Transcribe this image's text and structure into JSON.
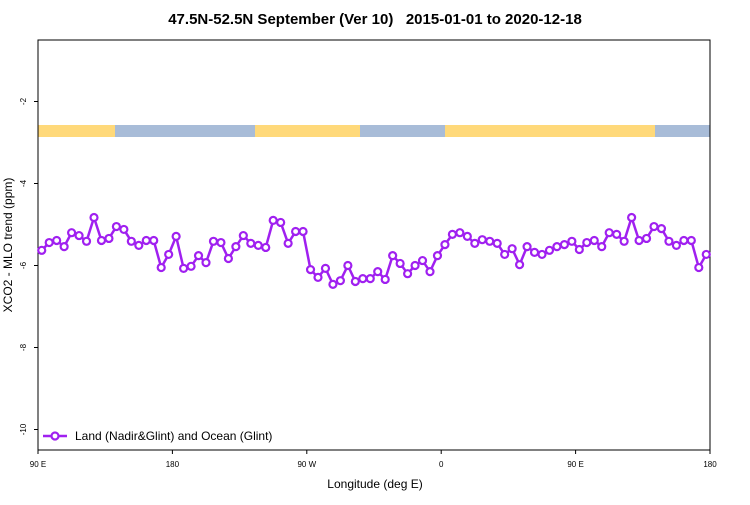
{
  "chart_data": {
    "type": "line",
    "title": "47.5N-52.5N September (Ver 10)   2015-01-01 to 2020-12-18",
    "x_label": "Longitude (deg E)",
    "y_label": "XCO2 - MLO trend (ppm)",
    "xlim": [
      90,
      540
    ],
    "ylim": [
      -10.5,
      -0.5
    ],
    "xticks": [
      {
        "value": 90,
        "label": "90 E"
      },
      180,
      {
        "value": 270,
        "label": "90 W"
      },
      {
        "value": 360,
        "label": "0"
      },
      {
        "value": 450,
        "label": "90 E"
      },
      {
        "value": 540,
        "label": "180"
      }
    ],
    "yticks": [
      -2,
      -4,
      -6,
      -8,
      -10
    ],
    "legend": "bottom-left",
    "x": [
      92.5,
      97.5,
      102.5,
      107.5,
      112.5,
      117.5,
      122.5,
      127.5,
      132.5,
      137.5,
      142.5,
      147.5,
      152.5,
      157.5,
      162.5,
      167.5,
      172.5,
      177.5,
      182.5,
      187.5,
      192.5,
      197.5,
      202.5,
      207.5,
      212.5,
      217.5,
      222.5,
      227.5,
      232.5,
      237.5,
      242.5,
      247.5,
      252.5,
      257.5,
      262.5,
      267.5,
      272.5,
      277.5,
      282.5,
      287.5,
      292.5,
      297.5,
      302.5,
      307.5,
      312.5,
      317.5,
      322.5,
      327.5,
      332.5,
      337.5,
      342.5,
      347.5,
      352.5,
      357.5,
      362.5,
      367.5,
      372.5,
      377.5,
      382.5,
      387.5,
      392.5,
      397.5,
      402.5,
      407.5,
      412.5,
      417.5,
      422.5,
      427.5,
      432.5,
      437.5,
      442.5,
      447.5,
      452.5,
      457.5,
      462.5,
      467.5,
      472.5,
      477.5,
      482.5,
      487.5,
      492.5,
      497.5,
      502.5,
      507.5,
      512.5,
      517.5,
      522.5,
      527.5,
      532.5,
      537.5
    ],
    "series": [
      {
        "name": "Land (Nadir&Glint) and Ocean (Glint)",
        "color": "#a020f0",
        "values": [
          -5.63,
          -5.44,
          -5.39,
          -5.54,
          -5.2,
          -5.27,
          -5.41,
          -4.83,
          -5.39,
          -5.34,
          -5.05,
          -5.12,
          -5.41,
          -5.51,
          -5.39,
          -5.39,
          -6.05,
          -5.73,
          -5.29,
          -6.07,
          -6.02,
          -5.76,
          -5.93,
          -5.41,
          -5.44,
          -5.83,
          -5.54,
          -5.27,
          -5.46,
          -5.51,
          -5.56,
          -4.9,
          -4.95,
          -5.46,
          -5.17,
          -5.17,
          -6.1,
          -6.29,
          -6.07,
          -6.46,
          -6.37,
          -6.0,
          -6.39,
          -6.32,
          -6.32,
          -6.15,
          -6.34,
          -5.76,
          -5.95,
          -6.2,
          -6.0,
          -5.88,
          -6.15,
          -5.76,
          -5.49,
          -5.24,
          -5.2,
          -5.29,
          -5.46,
          -5.37,
          -5.41,
          -5.46,
          -5.73,
          -5.59,
          -5.98,
          -5.54,
          -5.68,
          -5.73,
          -5.63,
          -5.54,
          -5.49,
          -5.41,
          -5.61,
          -5.44,
          -5.39,
          -5.54,
          -5.2,
          -5.24,
          -5.41,
          -4.83,
          -5.39,
          -5.34,
          -5.05,
          -5.1,
          -5.41,
          -5.51,
          -5.39,
          -5.39,
          -6.05,
          -5.73
        ]
      }
    ]
  }
}
